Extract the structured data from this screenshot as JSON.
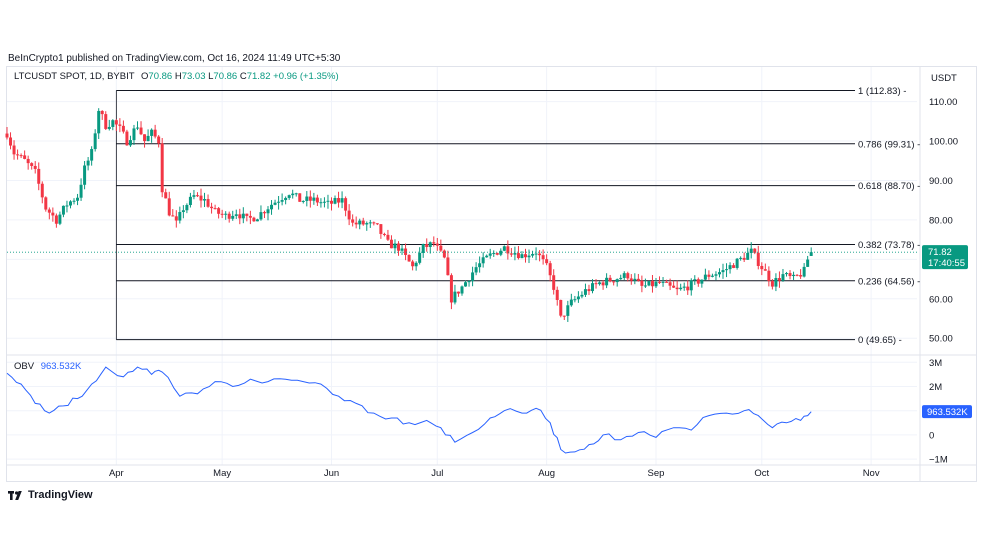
{
  "publisher": "BeInCrypto1 published on TradingView.com, Oct 16, 2024 11:49 UTC+5:30",
  "legend": {
    "symbol": "LTCUSDT SPOT, 1D, BYBIT",
    "o_label": "O",
    "o_value": "70.86",
    "h_label": "H",
    "h_value": "73.03",
    "l_label": "L",
    "l_value": "70.86",
    "c_label": "C",
    "c_value": "71.82",
    "change": "+0.96 (+1.35%)"
  },
  "currency": "USDT",
  "obv_legend": {
    "name": "OBV",
    "value": "963.532K"
  },
  "brand": "TradingView",
  "colors": {
    "up": "#089981",
    "down": "#f23645",
    "obv": "#2962ff",
    "fib": "#131722"
  },
  "chart_data": [
    {
      "type": "candlestick",
      "title": "LTCUSDT SPOT, 1D, BYBIT",
      "x_axis": {
        "tick_labels": [
          "Apr",
          "May",
          "Jun",
          "Jul",
          "Aug",
          "Sep",
          "Oct",
          "Nov"
        ]
      },
      "y_axis": {
        "tick_labels": [
          "110.00",
          "100.00",
          "90.00",
          "80.00",
          "70.00",
          "60.00",
          "50.00"
        ],
        "range": [
          46,
          117
        ]
      },
      "last_price": {
        "value": "71.82",
        "countdown": "17:40:55"
      },
      "fib_levels": [
        {
          "label": "1 (112.83)",
          "value": 112.83
        },
        {
          "label": "0.786 (99.31)",
          "value": 99.31
        },
        {
          "label": "0.618 (88.70)",
          "value": 88.7
        },
        {
          "label": "0.382 (73.78)",
          "value": 73.78
        },
        {
          "label": "0.236 (64.56)",
          "value": 64.56
        },
        {
          "label": "0 (49.65)",
          "value": 49.65
        }
      ],
      "series": [
        {
          "name": "LTCUSDT",
          "close_anchors": [
            [
              "2024-03-01",
              102
            ],
            [
              "2024-03-03",
              97
            ],
            [
              "2024-03-06",
              95
            ],
            [
              "2024-03-09",
              92
            ],
            [
              "2024-03-12",
              83
            ],
            [
              "2024-03-15",
              80
            ],
            [
              "2024-03-18",
              84
            ],
            [
              "2024-03-21",
              86
            ],
            [
              "2024-03-23",
              93
            ],
            [
              "2024-03-25",
              97
            ],
            [
              "2024-03-27",
              108
            ],
            [
              "2024-03-29",
              104
            ],
            [
              "2024-03-31",
              105
            ],
            [
              "2024-04-02",
              103
            ],
            [
              "2024-04-04",
              100
            ],
            [
              "2024-04-07",
              104
            ],
            [
              "2024-04-09",
              100
            ],
            [
              "2024-04-11",
              102
            ],
            [
              "2024-04-13",
              100
            ],
            [
              "2024-04-14",
              88
            ],
            [
              "2024-04-16",
              82
            ],
            [
              "2024-04-18",
              79
            ],
            [
              "2024-04-20",
              83
            ],
            [
              "2024-04-23",
              86
            ],
            [
              "2024-04-26",
              85
            ],
            [
              "2024-04-29",
              82
            ],
            [
              "2024-05-02",
              81
            ],
            [
              "2024-05-05",
              82
            ],
            [
              "2024-05-08",
              80
            ],
            [
              "2024-05-11",
              81
            ],
            [
              "2024-05-15",
              84
            ],
            [
              "2024-05-20",
              87
            ],
            [
              "2024-05-23",
              85
            ],
            [
              "2024-05-27",
              85
            ],
            [
              "2024-05-31",
              84
            ],
            [
              "2024-06-04",
              85
            ],
            [
              "2024-06-07",
              79
            ],
            [
              "2024-06-11",
              79
            ],
            [
              "2024-06-14",
              78
            ],
            [
              "2024-06-17",
              74
            ],
            [
              "2024-06-20",
              73
            ],
            [
              "2024-06-24",
              68
            ],
            [
              "2024-06-27",
              73
            ],
            [
              "2024-06-30",
              74
            ],
            [
              "2024-07-03",
              70
            ],
            [
              "2024-07-05",
              60
            ],
            [
              "2024-07-08",
              63
            ],
            [
              "2024-07-12",
              68
            ],
            [
              "2024-07-16",
              71
            ],
            [
              "2024-07-20",
              73
            ],
            [
              "2024-07-25",
              71
            ],
            [
              "2024-07-29",
              72
            ],
            [
              "2024-08-01",
              68
            ],
            [
              "2024-08-03",
              63
            ],
            [
              "2024-08-05",
              55
            ],
            [
              "2024-08-08",
              59
            ],
            [
              "2024-08-12",
              62
            ],
            [
              "2024-08-16",
              64
            ],
            [
              "2024-08-20",
              65
            ],
            [
              "2024-08-24",
              66
            ],
            [
              "2024-08-28",
              63
            ],
            [
              "2024-09-02",
              64
            ],
            [
              "2024-09-07",
              62
            ],
            [
              "2024-09-12",
              64
            ],
            [
              "2024-09-16",
              66
            ],
            [
              "2024-09-20",
              67
            ],
            [
              "2024-09-25",
              70
            ],
            [
              "2024-09-28",
              72
            ],
            [
              "2024-10-01",
              68
            ],
            [
              "2024-10-04",
              64
            ],
            [
              "2024-10-07",
              66
            ],
            [
              "2024-10-10",
              65
            ],
            [
              "2024-10-13",
              67
            ],
            [
              "2024-10-14",
              70
            ],
            [
              "2024-10-15",
              71.82
            ]
          ]
        }
      ]
    },
    {
      "type": "line",
      "title": "OBV",
      "y_axis": {
        "tick_labels": [
          "3M",
          "2M",
          "1M",
          "0",
          "−1M"
        ],
        "range": [
          -1.2,
          3.3
        ]
      },
      "last_value": "963.532K",
      "series": [
        {
          "name": "OBV",
          "points": [
            [
              "2024-03-01",
              2.55
            ],
            [
              "2024-03-05",
              2.1
            ],
            [
              "2024-03-09",
              1.3
            ],
            [
              "2024-03-13",
              0.9
            ],
            [
              "2024-03-17",
              1.2
            ],
            [
              "2024-03-21",
              1.5
            ],
            [
              "2024-03-25",
              2.1
            ],
            [
              "2024-03-29",
              2.8
            ],
            [
              "2024-04-03",
              2.4
            ],
            [
              "2024-04-07",
              2.8
            ],
            [
              "2024-04-11",
              2.5
            ],
            [
              "2024-04-14",
              2.6
            ],
            [
              "2024-04-19",
              1.6
            ],
            [
              "2024-04-24",
              1.7
            ],
            [
              "2024-04-29",
              2.2
            ],
            [
              "2024-05-04",
              2.0
            ],
            [
              "2024-05-09",
              2.3
            ],
            [
              "2024-05-14",
              2.2
            ],
            [
              "2024-05-19",
              2.3
            ],
            [
              "2024-05-24",
              2.2
            ],
            [
              "2024-05-29",
              2.1
            ],
            [
              "2024-06-03",
              1.6
            ],
            [
              "2024-06-08",
              1.3
            ],
            [
              "2024-06-13",
              0.9
            ],
            [
              "2024-06-18",
              0.7
            ],
            [
              "2024-06-23",
              0.5
            ],
            [
              "2024-06-28",
              0.6
            ],
            [
              "2024-07-02",
              0.3
            ],
            [
              "2024-07-06",
              -0.3
            ],
            [
              "2024-07-11",
              0.1
            ],
            [
              "2024-07-16",
              0.7
            ],
            [
              "2024-07-20",
              1.0
            ],
            [
              "2024-07-25",
              0.9
            ],
            [
              "2024-07-29",
              1.1
            ],
            [
              "2024-08-02",
              0.5
            ],
            [
              "2024-08-05",
              -0.6
            ],
            [
              "2024-08-09",
              -0.7
            ],
            [
              "2024-08-13",
              -0.4
            ],
            [
              "2024-08-17",
              0.0
            ],
            [
              "2024-08-22",
              -0.2
            ],
            [
              "2024-08-27",
              0.1
            ],
            [
              "2024-09-01",
              -0.1
            ],
            [
              "2024-09-06",
              0.3
            ],
            [
              "2024-09-11",
              0.2
            ],
            [
              "2024-09-16",
              0.8
            ],
            [
              "2024-09-21",
              0.9
            ],
            [
              "2024-09-26",
              1.0
            ],
            [
              "2024-09-30",
              0.8
            ],
            [
              "2024-10-04",
              0.3
            ],
            [
              "2024-10-08",
              0.5
            ],
            [
              "2024-10-12",
              0.6
            ],
            [
              "2024-10-15",
              0.96
            ]
          ]
        }
      ]
    }
  ]
}
